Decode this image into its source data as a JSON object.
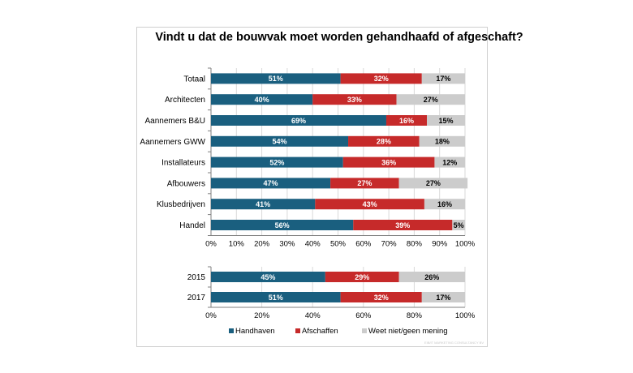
{
  "colors": {
    "handhaven": "#1a5f7f",
    "afschaffen": "#c62a2a",
    "weet_niet": "#cccccc"
  },
  "title": "Vindt u dat de bouwvak moet worden gehandhaafd of afgeschaft?",
  "watermark": "EIB/IT MARKETING CONSULTANCY BV",
  "chart_data": [
    {
      "type": "bar",
      "orientation": "horizontal",
      "stacked": true,
      "title": "Vindt u dat de bouwvak moet worden gehandhaafd of afgeschaft?",
      "categories": [
        "Totaal",
        "Architecten",
        "Aannemers B&U",
        "Aannemers GWW",
        "Installateurs",
        "Afbouwers",
        "Klusbedrijven",
        "Handel"
      ],
      "series": [
        {
          "name": "Handhaven",
          "values": [
            51,
            40,
            69,
            54,
            52,
            47,
            41,
            56
          ],
          "labels": [
            "51%",
            "40%",
            "69%",
            "54%",
            "52%",
            "47%",
            "41%",
            "56%"
          ]
        },
        {
          "name": "Afschaffen",
          "values": [
            32,
            33,
            16,
            28,
            36,
            27,
            43,
            39
          ],
          "labels": [
            "32%",
            "33%",
            "16%",
            "28%",
            "36%",
            "27%",
            "43%",
            "39%"
          ]
        },
        {
          "name": "Weet niet/geen mening",
          "values": [
            17,
            27,
            15,
            18,
            12,
            27,
            16,
            5
          ],
          "labels": [
            "17%",
            "27%",
            "15%",
            "18%",
            "12%",
            "27%",
            "16%",
            "5%"
          ]
        }
      ],
      "xlim": [
        0,
        100
      ],
      "xticks": [
        "0%",
        "10%",
        "20%",
        "30%",
        "40%",
        "50%",
        "60%",
        "70%",
        "80%",
        "90%",
        "100%"
      ],
      "grid": true
    },
    {
      "type": "bar",
      "orientation": "horizontal",
      "stacked": true,
      "categories": [
        "2015",
        "2017"
      ],
      "series": [
        {
          "name": "Handhaven",
          "values": [
            45,
            51
          ],
          "labels": [
            "45%",
            "51%"
          ]
        },
        {
          "name": "Afschaffen",
          "values": [
            29,
            32
          ],
          "labels": [
            "29%",
            "32%"
          ]
        },
        {
          "name": "Weet niet/geen mening",
          "values": [
            26,
            17
          ],
          "labels": [
            "26%",
            "17%"
          ]
        }
      ],
      "xlim": [
        0,
        100
      ],
      "xticks": [
        "0%",
        "20%",
        "40%",
        "60%",
        "80%",
        "100%"
      ],
      "grid": true,
      "legend": "bottom"
    }
  ]
}
